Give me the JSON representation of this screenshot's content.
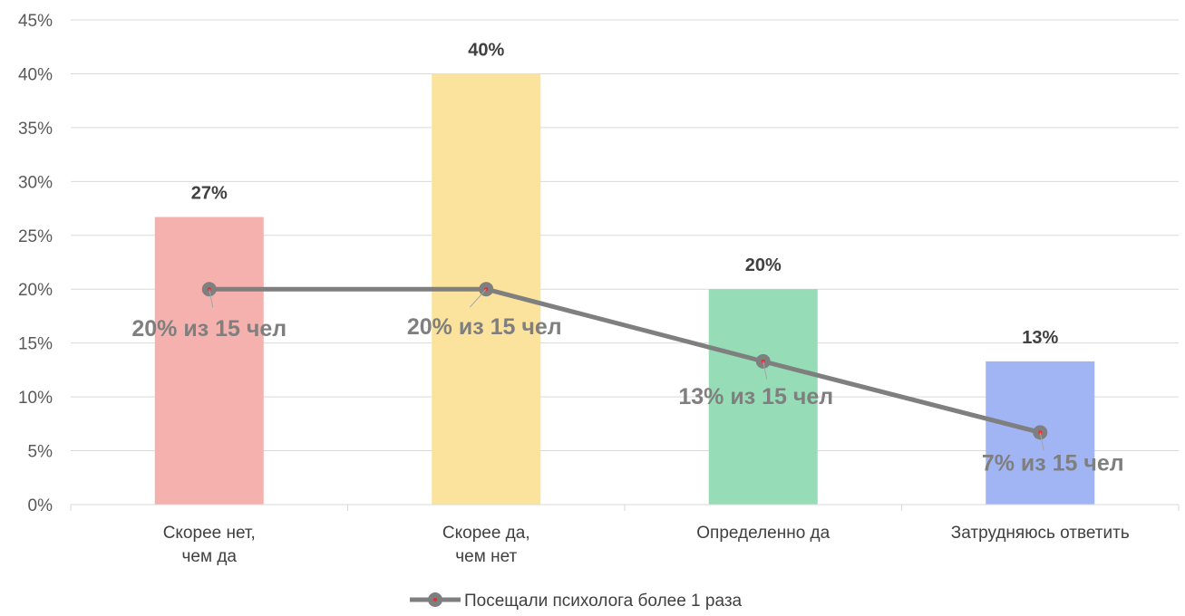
{
  "chart_data": {
    "type": "bar",
    "categories": [
      [
        "Скорее нет,",
        "чем да"
      ],
      [
        "Скорее да,",
        "чем нет"
      ],
      [
        "Определенно да"
      ],
      [
        "Затрудняюсь ответить"
      ]
    ],
    "bar_values": [
      26.7,
      40.0,
      20.0,
      13.3
    ],
    "bar_labels": [
      "27%",
      "40%",
      "20%",
      "13%"
    ],
    "bar_colors": [
      "#f4b1ad",
      "#fbe39d",
      "#96dcb6",
      "#a1b4f4"
    ],
    "line_series": {
      "name": "Посещали психолога более 1 раза",
      "values": [
        20,
        20,
        13.3,
        6.7
      ],
      "labels": [
        "20% из 15 чел",
        "20% из 15 чел",
        "13% из 15 чел",
        "7% из 15 чел"
      ],
      "color": "#7f7f7f",
      "marker_dot_color": "#e03030"
    },
    "y_ticks": [
      "0%",
      "5%",
      "10%",
      "15%",
      "20%",
      "25%",
      "30%",
      "35%",
      "40%",
      "45%"
    ],
    "ylim": [
      0,
      45
    ],
    "grid": true,
    "legend_position": "bottom-center"
  }
}
